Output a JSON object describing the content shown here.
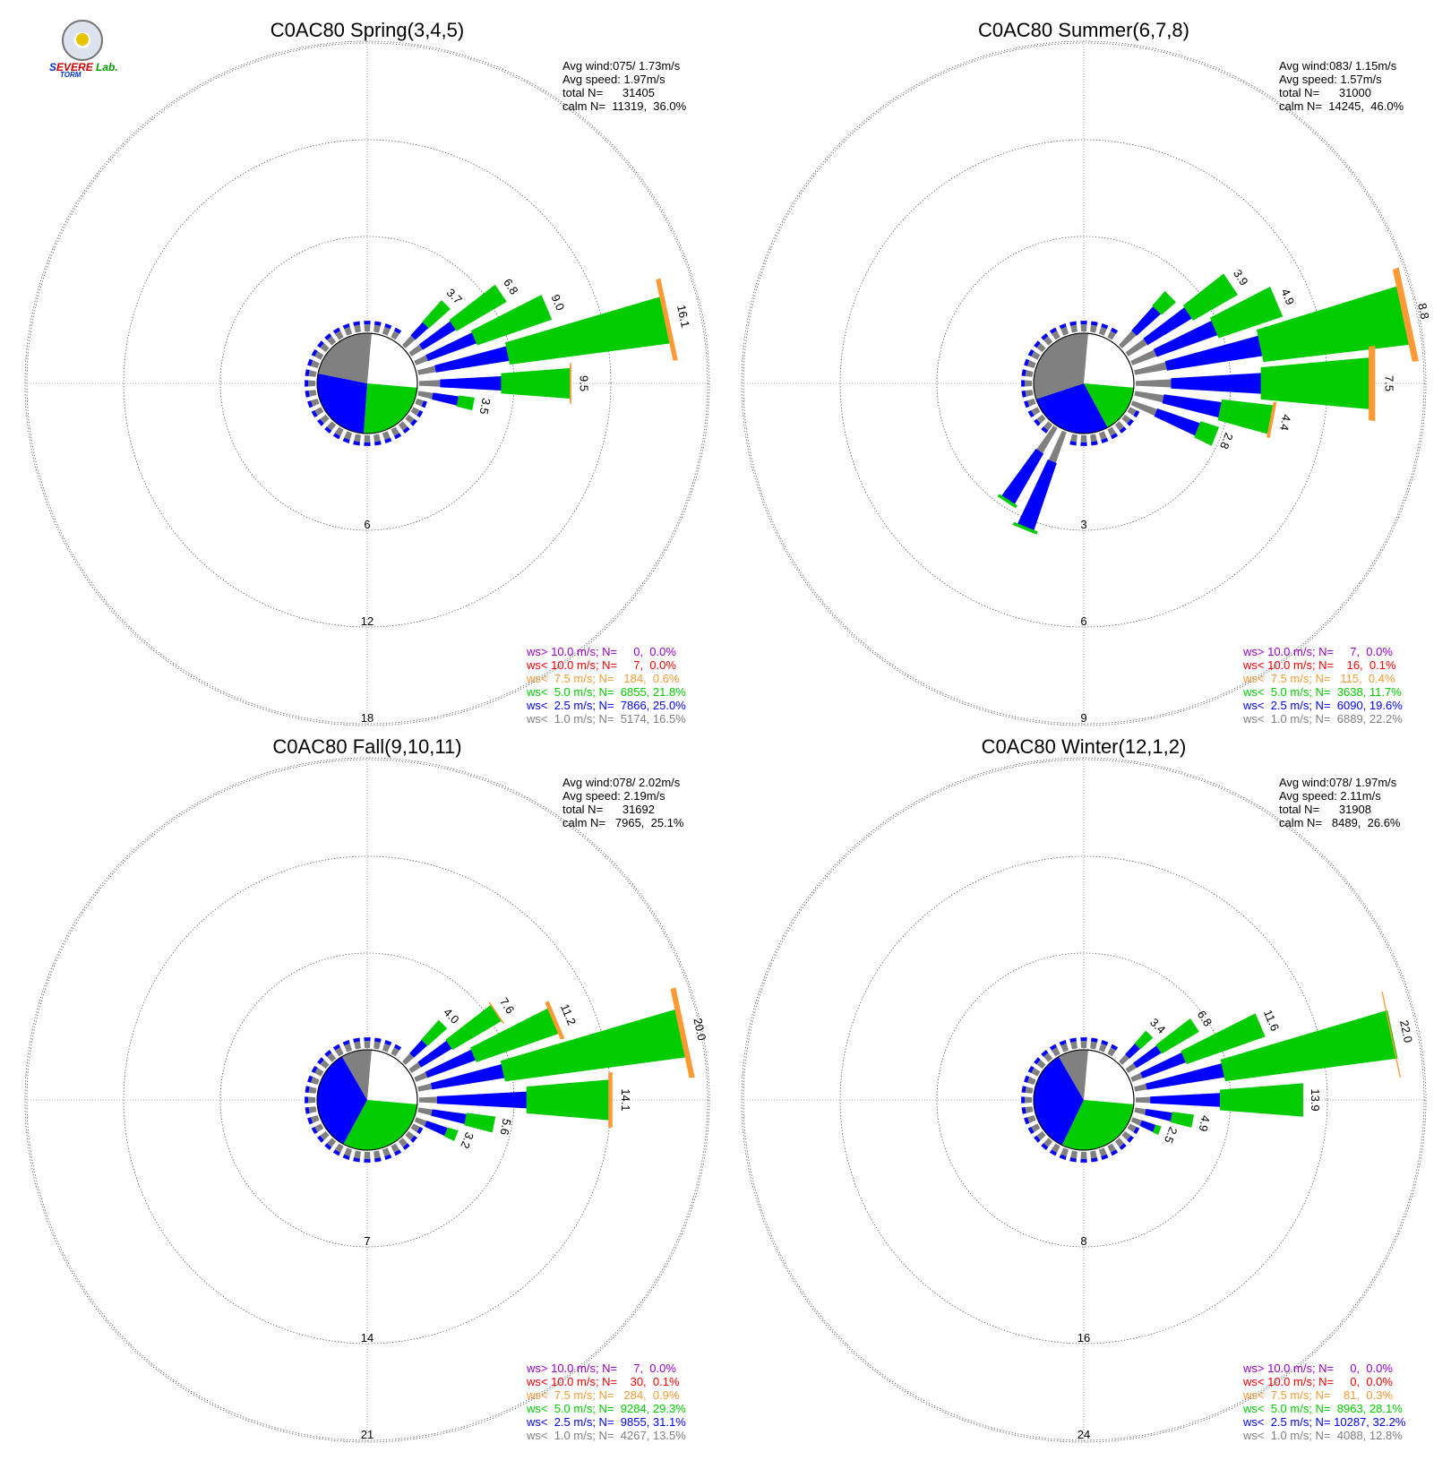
{
  "logo": {
    "text_a": "S",
    "text_b": "EVERE",
    "text_c": "Lab.",
    "text_d": "TORM"
  },
  "legend_colors": {
    "gt10": "#9900cc",
    "lt10": "#ff0000",
    "lt7_5": "#ff9933",
    "lt5": "#00cc00",
    "lt2_5": "#0000ff",
    "lt1": "#808080"
  },
  "chart_data": [
    {
      "type": "windrose",
      "title": "C0AC80 Spring(3,4,5)",
      "stats": [
        "Avg wind:075/ 1.73m/s",
        "Avg speed: 1.97m/s",
        "total N=      31405",
        "calm N=  11319,  36.0%"
      ],
      "ring_labels": [
        "6",
        "12",
        "18"
      ],
      "ring_values": [
        6,
        12,
        18
      ],
      "calm_pie": {
        "gray": 0.31,
        "blue": 0.36,
        "green": 0.33
      },
      "petals_deg": [
        {
          "dir": 45,
          "total": 3.7,
          "lt1": 0.8,
          "lt2_5": 1.1,
          "lt5": 1.8,
          "label": "3.7"
        },
        {
          "dir": 56,
          "total": 6.8,
          "lt1": 0.8,
          "lt2_5": 2.4,
          "lt5": 3.6,
          "label": "6.8"
        },
        {
          "dir": 67,
          "total": 9.0,
          "lt1": 0.8,
          "lt2_5": 3.2,
          "lt5": 4.9,
          "label": "9.0"
        },
        {
          "dir": 78,
          "total": 16.1,
          "lt1": 1.1,
          "lt2_5": 4.6,
          "lt5": 10.1,
          "lt7_5": 0.3,
          "label": "16.1"
        },
        {
          "dir": 90,
          "total": 9.5,
          "lt1": 1.3,
          "lt2_5": 3.8,
          "lt5": 4.3,
          "lt7_5": 0.1,
          "label": "9.5"
        },
        {
          "dir": 101,
          "total": 3.5,
          "lt1": 0.9,
          "lt2_5": 1.6,
          "lt5": 1.0,
          "label": "3.5"
        }
      ],
      "legend": [
        "ws> 10.0 m/s; N=     0,  0.0%",
        "ws< 10.0 m/s; N=     7,  0.0%",
        "ws<  7.5 m/s; N=   184,  0.6%",
        "ws<  5.0 m/s; N=  6855, 21.8%",
        "ws<  2.5 m/s; N=  7866, 25.0%",
        "ws<  1.0 m/s; N=  5174, 16.5%"
      ]
    },
    {
      "type": "windrose",
      "title": "C0AC80 Summer(6,7,8)",
      "stats": [
        "Avg wind:083/ 1.15m/s",
        "Avg speed: 1.57m/s",
        "total N=      31000",
        "calm N=  14245,  46.0%"
      ],
      "ring_labels": [
        "3",
        "6",
        "9"
      ],
      "ring_values": [
        3,
        6,
        9
      ],
      "calm_pie": {
        "gray": 0.42,
        "blue": 0.37,
        "green": 0.21
      },
      "petals_deg": [
        {
          "dir": 45,
          "total": 2.2,
          "lt1": 0.6,
          "lt2_5": 1.0,
          "lt5": 0.6,
          "label": ""
        },
        {
          "dir": 56,
          "total": 3.9,
          "lt1": 0.7,
          "lt2_5": 1.6,
          "lt5": 1.6,
          "label": "3.9"
        },
        {
          "dir": 67,
          "total": 4.9,
          "lt1": 0.8,
          "lt2_5": 2.0,
          "lt5": 2.1,
          "label": "4.9"
        },
        {
          "dir": 78,
          "total": 8.8,
          "lt1": 1.0,
          "lt2_5": 3.0,
          "lt5": 4.6,
          "lt7_5": 0.2,
          "label": "8.8"
        },
        {
          "dir": 90,
          "total": 7.5,
          "lt1": 1.1,
          "lt2_5": 2.8,
          "lt5": 3.4,
          "lt7_5": 0.2,
          "label": "7.5"
        },
        {
          "dir": 101,
          "total": 4.4,
          "lt1": 0.9,
          "lt2_5": 1.8,
          "lt5": 1.6,
          "lt7_5": 0.1,
          "label": "4.4"
        },
        {
          "dir": 112,
          "total": 2.8,
          "lt1": 0.8,
          "lt2_5": 1.4,
          "lt5": 0.6,
          "label": "2.8"
        },
        {
          "dir": 202,
          "total": 3.3,
          "lt1": 1.0,
          "lt2_5": 2.2,
          "lt5": 0.1,
          "label": ""
        },
        {
          "dir": 213,
          "total": 2.8,
          "lt1": 0.9,
          "lt2_5": 1.8,
          "lt5": 0.1,
          "label": ""
        }
      ],
      "legend": [
        "ws> 10.0 m/s; N=     7,  0.0%",
        "ws< 10.0 m/s; N=    16,  0.1%",
        "ws<  7.5 m/s; N=   115,  0.4%",
        "ws<  5.0 m/s; N=  3638, 11.7%",
        "ws<  2.5 m/s; N=  6090, 19.6%",
        "ws<  1.0 m/s; N=  6889, 22.2%"
      ]
    },
    {
      "type": "windrose",
      "title": "C0AC80 Fall(9,10,11)",
      "stats": [
        "Avg wind:078/ 2.02m/s",
        "Avg speed: 2.19m/s",
        "total N=      31692",
        "calm N=   7965,  25.1%"
      ],
      "ring_labels": [
        "7",
        "14",
        "21"
      ],
      "ring_values": [
        7,
        14,
        21
      ],
      "calm_pie": {
        "gray": 0.13,
        "blue": 0.45,
        "green": 0.42
      },
      "petals_deg": [
        {
          "dir": 45,
          "total": 4.0,
          "lt1": 0.8,
          "lt2_5": 1.3,
          "lt5": 1.9,
          "label": "4.0"
        },
        {
          "dir": 56,
          "total": 7.6,
          "lt1": 0.8,
          "lt2_5": 2.6,
          "lt5": 4.1,
          "lt7_5": 0.1,
          "label": "7.6"
        },
        {
          "dir": 67,
          "total": 11.2,
          "lt1": 0.9,
          "lt2_5": 3.7,
          "lt5": 6.3,
          "lt7_5": 0.3,
          "label": "11.2"
        },
        {
          "dir": 78,
          "total": 20.0,
          "lt1": 1.0,
          "lt2_5": 5.3,
          "lt5": 13.3,
          "lt7_5": 0.4,
          "label": "20.0"
        },
        {
          "dir": 90,
          "total": 14.1,
          "lt1": 1.3,
          "lt2_5": 6.5,
          "lt5": 6.0,
          "lt7_5": 0.3,
          "label": "14.1"
        },
        {
          "dir": 101,
          "total": 5.6,
          "lt1": 1.0,
          "lt2_5": 2.5,
          "lt5": 2.1,
          "label": "5.6"
        },
        {
          "dir": 112,
          "total": 3.2,
          "lt1": 0.8,
          "lt2_5": 1.6,
          "lt5": 0.8,
          "label": "3.2"
        }
      ],
      "legend": [
        "ws> 10.0 m/s; N=     7,  0.0%",
        "ws< 10.0 m/s; N=    30,  0.1%",
        "ws<  7.5 m/s; N=   284,  0.9%",
        "ws<  5.0 m/s; N=  9284, 29.3%",
        "ws<  2.5 m/s; N=  9855, 31.1%",
        "ws<  1.0 m/s; N=  4267, 13.5%"
      ]
    },
    {
      "type": "windrose",
      "title": "C0AC80 Winter(12,1,2)",
      "stats": [
        "Avg wind:078/ 1.97m/s",
        "Avg speed: 2.11m/s",
        "total N=      31908",
        "calm N=   8489,  26.6%"
      ],
      "ring_labels": [
        "8",
        "16",
        "24"
      ],
      "ring_values": [
        8,
        16,
        24
      ],
      "calm_pie": {
        "gray": 0.13,
        "blue": 0.46,
        "green": 0.41
      },
      "petals_deg": [
        {
          "dir": 45,
          "total": 3.4,
          "lt1": 0.8,
          "lt2_5": 1.2,
          "lt5": 1.4,
          "label": "3.4"
        },
        {
          "dir": 56,
          "total": 6.8,
          "lt1": 0.8,
          "lt2_5": 2.4,
          "lt5": 3.6,
          "label": "6.8"
        },
        {
          "dir": 67,
          "total": 11.6,
          "lt1": 0.9,
          "lt2_5": 3.8,
          "lt5": 6.9,
          "label": "11.6"
        },
        {
          "dir": 78,
          "total": 22.0,
          "lt1": 1.0,
          "lt2_5": 6.5,
          "lt5": 14.4,
          "lt7_5": 0.1,
          "label": "22.0"
        },
        {
          "dir": 90,
          "total": 13.9,
          "lt1": 1.2,
          "lt2_5": 5.8,
          "lt5": 6.9,
          "label": "13.9"
        },
        {
          "dir": 101,
          "total": 4.9,
          "lt1": 0.9,
          "lt2_5": 2.2,
          "lt5": 1.8,
          "label": "4.9"
        },
        {
          "dir": 112,
          "total": 2.5,
          "lt1": 0.8,
          "lt2_5": 1.2,
          "lt5": 0.5,
          "label": "2.5"
        }
      ],
      "legend": [
        "ws> 10.0 m/s; N=     0,  0.0%",
        "ws< 10.0 m/s; N=     0,  0.0%",
        "ws<  7.5 m/s; N=    81,  0.3%",
        "ws<  5.0 m/s; N=  8963, 28.1%",
        "ws<  2.5 m/s; N= 10287, 32.2%",
        "ws<  1.0 m/s; N=  4088, 12.8%"
      ]
    }
  ]
}
